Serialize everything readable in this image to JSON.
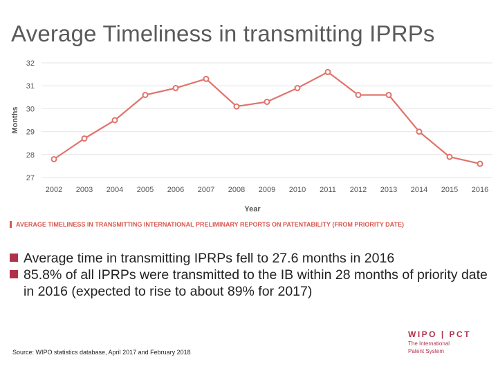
{
  "slide": {
    "title": "Average Timeliness in transmitting IPRPs",
    "caption": "AVERAGE TIMELINESS IN TRANSMITTING INTERNATIONAL PRELIMINARY REPORTS ON PATENTABILITY (FROM PRIORITY DATE)",
    "bullets": [
      "Average time in transmitting IPRPs fell to 27.6 months in 2016",
      "85.8% of all IPRPs were transmitted to the IB within 28 months of priority date in 2016 (expected to rise to about 89% for 2017)"
    ],
    "source": "Source: WIPO statistics database,  April 2017 and February 2018",
    "logo": {
      "main": "WIPO | PCT",
      "sub_line1": "The International",
      "sub_line2": "Patent System"
    }
  },
  "colors": {
    "line": "#e0736b",
    "caption": "#d9574f",
    "bullet": "#b0324a",
    "grid": "#e6e6e6"
  },
  "chart_data": {
    "type": "line",
    "title": "",
    "xlabel": "Year",
    "ylabel": "Months",
    "ylim": [
      27,
      32
    ],
    "yticks": [
      27,
      28,
      29,
      30,
      31,
      32
    ],
    "grid": true,
    "x": [
      "2002",
      "2003",
      "2004",
      "2005",
      "2006",
      "2007",
      "2008",
      "2009",
      "2010",
      "2011",
      "2012",
      "2013",
      "2014",
      "2015",
      "2016"
    ],
    "series": [
      {
        "values": [
          27.8,
          28.7,
          29.5,
          30.6,
          30.9,
          31.3,
          30.1,
          30.3,
          30.9,
          31.6,
          30.6,
          30.6,
          29.0,
          27.9,
          27.6
        ]
      }
    ]
  }
}
